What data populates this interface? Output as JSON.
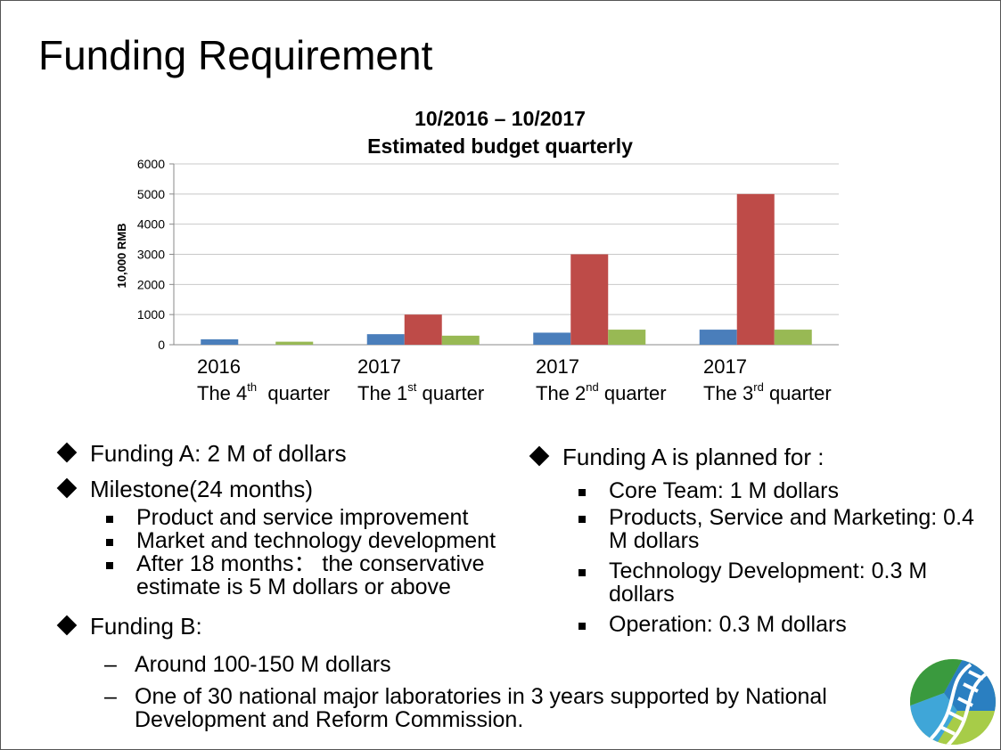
{
  "slide_title": "Funding Requirement",
  "chart_data": {
    "type": "bar",
    "title_line1": "10/2016  – 10/2017",
    "title_line2": "Estimated budget quarterly",
    "ylabel": "10,000 RMB",
    "ylim": [
      0,
      6000
    ],
    "yticks": [
      0,
      1000,
      2000,
      3000,
      4000,
      5000,
      6000
    ],
    "grid": true,
    "categories": [
      {
        "year": "2016",
        "pre": "The 4",
        "sup": "th",
        "post": "  quarter"
      },
      {
        "year": "2017",
        "pre": "The 1",
        "sup": "st",
        "post": " quarter"
      },
      {
        "year": "2017",
        "pre": "The 2",
        "sup": "nd",
        "post": " quarter"
      },
      {
        "year": "2017",
        "pre": "The 3",
        "sup": "rd",
        "post": " quarter"
      }
    ],
    "series": [
      {
        "color": "#4a7ebb",
        "values": [
          180,
          350,
          400,
          500
        ]
      },
      {
        "color": "#be4b48",
        "values": [
          0,
          1000,
          3000,
          5000
        ]
      },
      {
        "color": "#98b954",
        "values": [
          100,
          300,
          500,
          500
        ]
      }
    ]
  },
  "left": {
    "funding_a": "Funding A: 2 M of dollars",
    "milestone": "Milestone(24 months)",
    "milestone_items": [
      "Product and service improvement",
      "Market and technology development",
      "After 18 months： the conservative estimate is 5 M dollars or above"
    ],
    "funding_b": "Funding B:",
    "funding_b_items": [
      "Around 100-150 M dollars",
      "One of 30 national major laboratories in 3 years supported by National Development and Reform Commission."
    ],
    "dash_glyph": "–"
  },
  "right": {
    "heading": "Funding A is planned for :",
    "items": [
      "Core Team: 1 M dollars",
      "Products, Service and Marketing: 0.4 M dollars",
      "Technology Development: 0.3 M dollars",
      "Operation: 0.3 M dollars"
    ]
  },
  "icons": {
    "bullet_main": "diamond-bullet-icon",
    "bullet_sub": "square-bullet-icon",
    "logo": "dna-circle-logo"
  },
  "logo_colors": [
    "#3a9a3e",
    "#2a7fc1",
    "#3fa6d8",
    "#a7cc48"
  ]
}
